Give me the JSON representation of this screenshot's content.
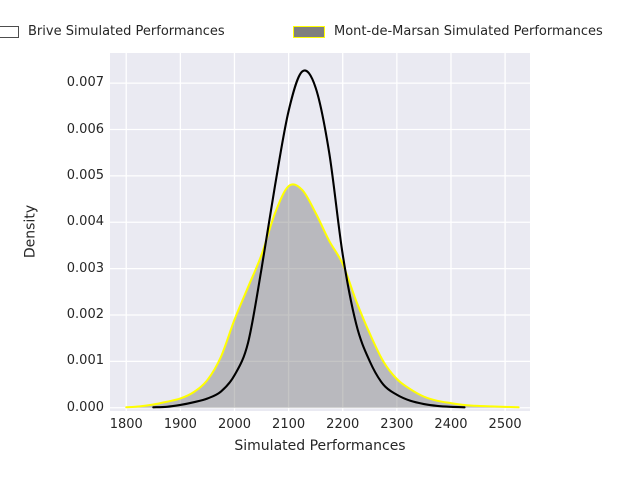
{
  "figure": {
    "background": "#ffffff",
    "text_color": "#262626"
  },
  "legend": {
    "items": [
      {
        "label": "Brive Simulated Performances",
        "fill": "#ffffff",
        "edge": "#4d4d4d"
      },
      {
        "label": "Mont-de-Marsan Simulated Performances",
        "fill": "#7f7f7f",
        "edge": "#ffff00"
      }
    ]
  },
  "chart_data": {
    "type": "area",
    "subtype": "kde-density",
    "title": "",
    "xlabel": "Simulated Performances",
    "ylabel": "Density",
    "xlim": [
      1770,
      2546
    ],
    "ylim": [
      -7e-05,
      0.00765
    ],
    "grid": true,
    "plot_background": "#eaeaf2",
    "grid_color": "#ffffff",
    "x_tick_values": [
      1800,
      1900,
      2000,
      2100,
      2200,
      2300,
      2400,
      2500
    ],
    "x_tick_labels": [
      "1800",
      "1900",
      "2000",
      "2100",
      "2200",
      "2300",
      "2400",
      "2500"
    ],
    "y_tick_values": [
      0.0,
      0.001,
      0.002,
      0.003,
      0.004,
      0.005,
      0.006,
      0.007
    ],
    "y_tick_labels": [
      "0.000",
      "0.001",
      "0.002",
      "0.003",
      "0.004",
      "0.005",
      "0.006",
      "0.007"
    ],
    "legend_position": "above-axes",
    "series": [
      {
        "name": "Mont-de-Marsan Simulated Performances",
        "style": "filled-curve",
        "line_color": "#ffff00",
        "line_width": 2,
        "fill_color": "rgba(127,127,127,0.45)",
        "peak": {
          "x": 2108,
          "y": 0.0048
        },
        "x": [
          1800,
          1825,
          1850,
          1875,
          1900,
          1925,
          1950,
          1975,
          2000,
          2025,
          2050,
          2075,
          2100,
          2125,
          2150,
          2175,
          2200,
          2225,
          2250,
          2275,
          2300,
          2325,
          2350,
          2375,
          2400,
          2425,
          2450,
          2475,
          2500,
          2525
        ],
        "y": [
          1e-05,
          3e-05,
          7e-05,
          0.00013,
          0.0002,
          0.00034,
          0.0006,
          0.0011,
          0.0019,
          0.0026,
          0.0033,
          0.0042,
          0.00478,
          0.0047,
          0.0042,
          0.0036,
          0.0031,
          0.0023,
          0.0016,
          0.001,
          0.00062,
          0.0004,
          0.00024,
          0.00015,
          0.0001,
          6e-05,
          4e-05,
          3e-05,
          2e-05,
          1e-05
        ]
      },
      {
        "name": "Brive Simulated Performances",
        "style": "line-curve",
        "line_color": "#000000",
        "line_width": 2.1,
        "fill_color": "none",
        "peak": {
          "x": 2131,
          "y": 0.0073
        },
        "x": [
          1850,
          1875,
          1900,
          1925,
          1950,
          1975,
          2000,
          2025,
          2050,
          2075,
          2100,
          2125,
          2150,
          2175,
          2200,
          2225,
          2250,
          2275,
          2300,
          2325,
          2350,
          2375,
          2400,
          2425
        ],
        "y": [
          1e-05,
          2e-05,
          6e-05,
          0.00012,
          0.0002,
          0.00035,
          0.0007,
          0.0014,
          0.003,
          0.0048,
          0.0064,
          0.00725,
          0.0069,
          0.0055,
          0.0033,
          0.0018,
          0.001,
          0.0005,
          0.00028,
          0.00015,
          8e-05,
          4e-05,
          2e-05,
          1e-05
        ]
      }
    ]
  }
}
